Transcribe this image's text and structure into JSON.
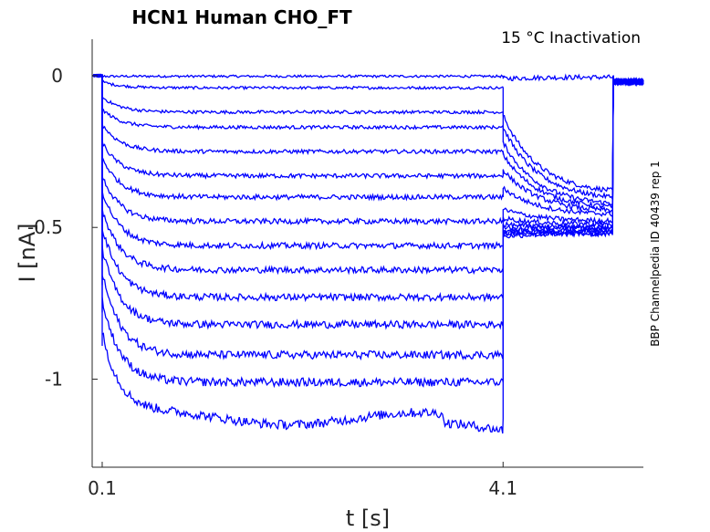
{
  "chart_data": {
    "type": "line",
    "title": "HCN1  Human  CHO_FT",
    "subtitle": "15 °C  Inactivation",
    "side_note": "BBP Channelpedia ID 40439 rep 1",
    "xlabel": "t [s]",
    "ylabel": "I [nA]",
    "xlim": [
      0.0,
      5.5
    ],
    "ylim": [
      -1.29,
      0.12
    ],
    "x_ticks": [
      0.1,
      4.1
    ],
    "x_tick_labels": [
      "0.1",
      "4.1"
    ],
    "y_ticks": [
      0,
      -0.5,
      -1
    ],
    "y_tick_labels": [
      "0",
      "-0.5",
      "-1"
    ],
    "grid": false,
    "series_color": "#0000ff",
    "protocol": {
      "step_on": 0.1,
      "step_off": 4.1,
      "trace_end": 5.2
    },
    "traces": [
      {
        "steady": -0.002,
        "onset": -0.002,
        "tail_start": -0.01,
        "tail_end": -0.005
      },
      {
        "steady": -0.04,
        "onset": -0.02,
        "tail_start": -0.13,
        "tail_end": -0.39
      },
      {
        "steady": -0.12,
        "onset": -0.07,
        "tail_start": -0.17,
        "tail_end": -0.41
      },
      {
        "steady": -0.17,
        "onset": -0.11,
        "tail_start": -0.22,
        "tail_end": -0.43
      },
      {
        "steady": -0.25,
        "onset": -0.16,
        "tail_start": -0.26,
        "tail_end": -0.44
      },
      {
        "steady": -0.33,
        "onset": -0.22,
        "tail_start": -0.31,
        "tail_end": -0.45
      },
      {
        "steady": -0.4,
        "onset": -0.27,
        "tail_start": -0.37,
        "tail_end": -0.46
      },
      {
        "steady": -0.48,
        "onset": -0.33,
        "tail_start": -0.44,
        "tail_end": -0.48
      },
      {
        "steady": -0.56,
        "onset": -0.38,
        "tail_start": -0.47,
        "tail_end": -0.49
      },
      {
        "steady": -0.64,
        "onset": -0.44,
        "tail_start": -0.49,
        "tail_end": -0.5
      },
      {
        "steady": -0.73,
        "onset": -0.5,
        "tail_start": -0.5,
        "tail_end": -0.5
      },
      {
        "steady": -0.82,
        "onset": -0.57,
        "tail_start": -0.51,
        "tail_end": -0.51
      },
      {
        "steady": -0.92,
        "onset": -0.65,
        "tail_start": -0.52,
        "tail_end": -0.51
      },
      {
        "steady": -1.01,
        "onset": -0.74,
        "tail_start": -0.52,
        "tail_end": -0.52
      },
      {
        "steady": -1.13,
        "onset": -0.85,
        "tail_start": -0.53,
        "tail_end": -0.52
      }
    ]
  }
}
